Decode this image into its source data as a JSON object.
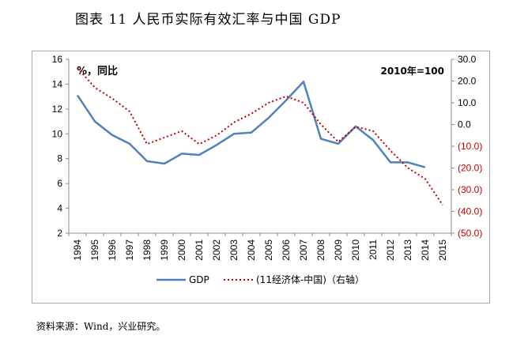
{
  "header": {
    "title": "图表 11   人民币实际有效汇率与中国 GDP"
  },
  "footer": {
    "source": "资料来源：Wind，兴业研究。"
  },
  "chart_data": {
    "type": "line",
    "x": [
      "1994",
      "1995",
      "1996",
      "1997",
      "1998",
      "1999",
      "2000",
      "2001",
      "2002",
      "2003",
      "2004",
      "2005",
      "2006",
      "2007",
      "2008",
      "2009",
      "2010",
      "2011",
      "2012",
      "2013",
      "2014",
      "2015"
    ],
    "left_axis": {
      "label": "%，同比",
      "ylim": [
        2,
        16
      ],
      "ticks": [
        "2",
        "4",
        "6",
        "8",
        "10",
        "12",
        "14",
        "16"
      ]
    },
    "right_axis": {
      "label": "2010年=100",
      "ylim": [
        -50,
        30
      ],
      "ticks": [
        "30.0",
        "20.0",
        "10.0",
        "0.0",
        "(10.0)",
        "(20.0)",
        "(30.0)",
        "(40.0)",
        "(50.0)"
      ],
      "tick_values": [
        30,
        20,
        10,
        0,
        -10,
        -20,
        -30,
        -40,
        -50
      ]
    },
    "series": [
      {
        "name": "GDP",
        "axis": "left",
        "color": "#4f81bd",
        "style": "solid",
        "values": [
          13.1,
          11.0,
          9.9,
          9.2,
          7.8,
          7.6,
          8.4,
          8.3,
          9.1,
          10.0,
          10.1,
          11.3,
          12.7,
          14.2,
          9.6,
          9.2,
          10.6,
          9.5,
          7.7,
          7.7,
          7.3,
          null
        ]
      },
      {
        "name": "(11经济体-中国)（右轴）",
        "axis": "right",
        "color": "#c00000",
        "style": "dotted",
        "values": [
          26,
          17,
          12,
          6,
          -9,
          -6,
          -3,
          -9,
          -5,
          1,
          5,
          10,
          13,
          10,
          0,
          -8,
          -1,
          -3,
          -12,
          -20,
          -25,
          -37
        ]
      }
    ],
    "grid": false,
    "legend_position": "bottom"
  }
}
